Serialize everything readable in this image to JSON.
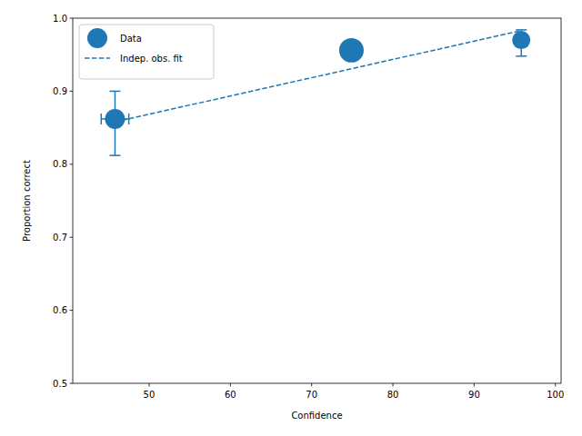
{
  "chart_data": {
    "type": "scatter",
    "x_label": "Confidence",
    "y_label": "Proportion correct",
    "xlim": [
      40.6,
      100.7
    ],
    "ylim": [
      0.5,
      1.0
    ],
    "xticks": [
      50,
      60,
      70,
      80,
      90,
      100
    ],
    "yticks": [
      0.5,
      0.6,
      0.7,
      0.8,
      0.9,
      {
        "value": 1,
        "label": "1.0"
      }
    ],
    "legend": "upper left",
    "series": [
      {
        "name": "Data",
        "type": "scatter",
        "color": "#1f77b4",
        "marker": "circle",
        "x": [
          45.8,
          74.9,
          95.8
        ],
        "values": [
          0.862,
          0.956,
          0.97
        ],
        "sizes": [
          121,
          182,
          100
        ],
        "y_err_lower": [
          0.05,
          0.012,
          0.022
        ],
        "y_err_upper": [
          0.038,
          0.01,
          0.014
        ],
        "x_err": [
          1.7,
          0.6,
          0.5
        ]
      },
      {
        "name": "Indep. obs. fit",
        "type": "line",
        "color": "#1f77b4",
        "line_style": "dashed",
        "x": [
          45.8,
          95.8
        ],
        "values": [
          0.858,
          0.983
        ]
      }
    ]
  }
}
